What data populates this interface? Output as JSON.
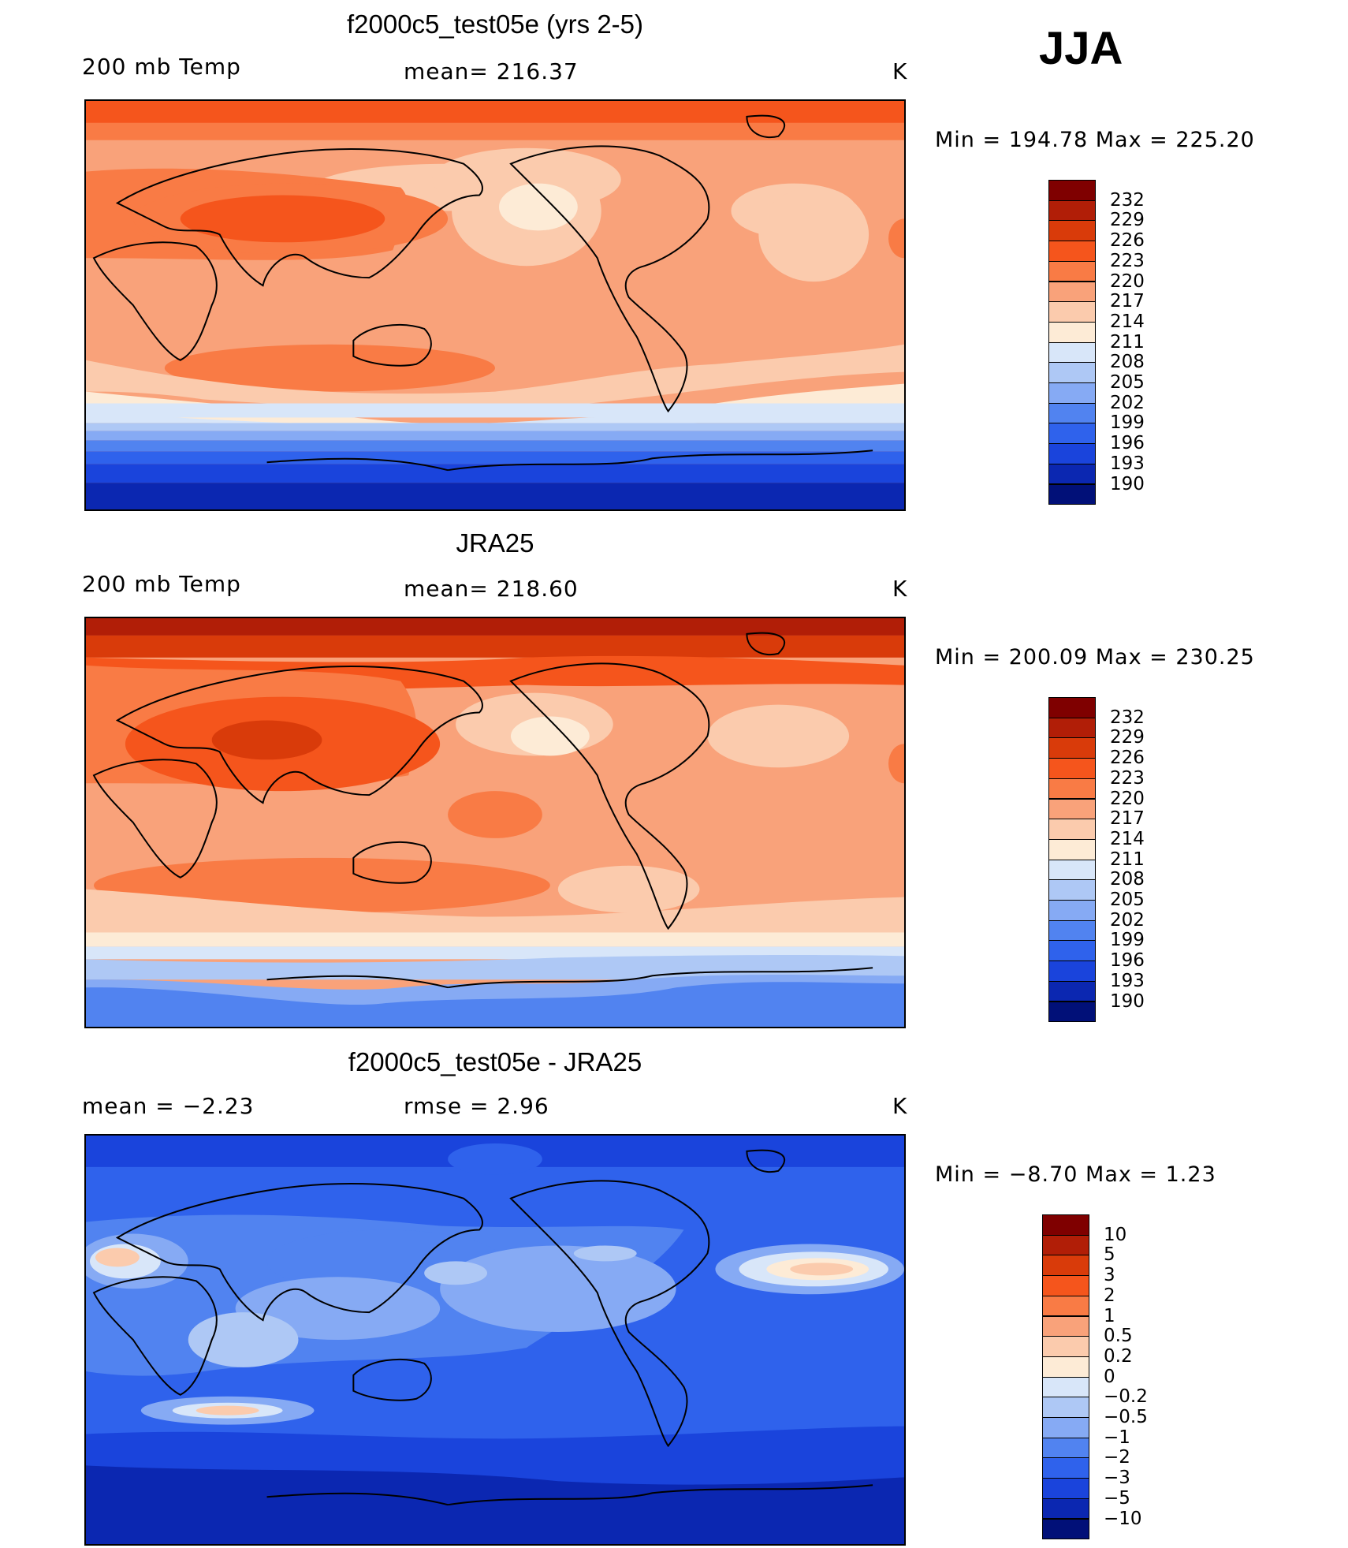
{
  "season": "JJA",
  "units": "K",
  "panels": [
    {
      "title": "f2000c5_test05e (yrs 2-5)",
      "left_label": "200 mb Temp",
      "center_label": "mean= 216.37",
      "minmax": "Min  =  194.78  Max  =  225.20",
      "colorbar": {
        "levels": [
          "232",
          "229",
          "226",
          "223",
          "220",
          "217",
          "214",
          "211",
          "208",
          "205",
          "202",
          "199",
          "196",
          "193",
          "190"
        ],
        "colors": [
          "#7f0000",
          "#b11e07",
          "#d93b0a",
          "#f5551c",
          "#f97b45",
          "#f9a27a",
          "#fbcbad",
          "#fdebd6",
          "#d8e6f9",
          "#aec8f5",
          "#86aaf4",
          "#5183f0",
          "#2f62ec",
          "#1a44dc",
          "#0b27b1",
          "#011078"
        ]
      }
    },
    {
      "title": "JRA25",
      "left_label": "200 mb Temp",
      "center_label": "mean= 218.60",
      "minmax": "Min  =  200.09  Max  =  230.25",
      "colorbar": {
        "levels": [
          "232",
          "229",
          "226",
          "223",
          "220",
          "217",
          "214",
          "211",
          "208",
          "205",
          "202",
          "199",
          "196",
          "193",
          "190"
        ],
        "colors": [
          "#7f0000",
          "#b11e07",
          "#d93b0a",
          "#f5551c",
          "#f97b45",
          "#f9a27a",
          "#fbcbad",
          "#fdebd6",
          "#d8e6f9",
          "#aec8f5",
          "#86aaf4",
          "#5183f0",
          "#2f62ec",
          "#1a44dc",
          "#0b27b1",
          "#011078"
        ]
      }
    },
    {
      "title": "f2000c5_test05e - JRA25",
      "left_label": "mean =    −2.23",
      "center_label": "rmse =     2.96",
      "minmax": "Min  =    −8.70  Max  =      1.23",
      "colorbar": {
        "levels": [
          "10",
          "5",
          "3",
          "2",
          "1",
          "0.5",
          "0.2",
          "0",
          "−0.2",
          "−0.5",
          "−1",
          "−2",
          "−3",
          "−5",
          "−10"
        ],
        "colors": [
          "#7f0000",
          "#b11e07",
          "#d93b0a",
          "#f5551c",
          "#f97b45",
          "#f9a27a",
          "#fbcbad",
          "#fdebd6",
          "#d8e6f9",
          "#aec8f5",
          "#86aaf4",
          "#5183f0",
          "#2f62ec",
          "#1a44dc",
          "#0b27b1",
          "#011078"
        ]
      }
    }
  ]
}
